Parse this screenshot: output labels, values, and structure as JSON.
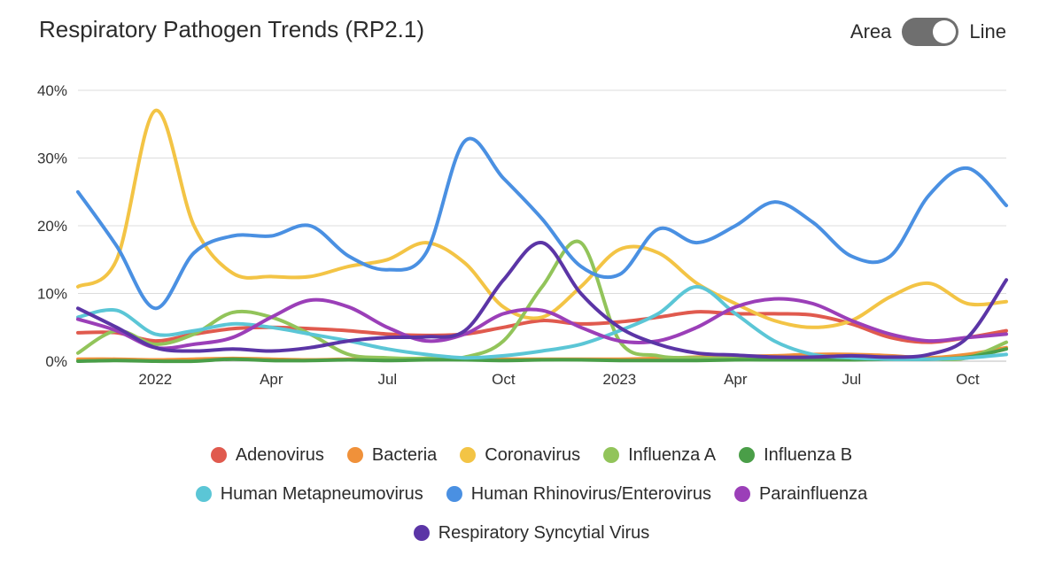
{
  "header": {
    "title": "Respiratory Pathogen Trends (RP2.1)",
    "toggle_left": "Area",
    "toggle_right": "Line"
  },
  "chart_data": {
    "type": "line",
    "title": "Respiratory Pathogen Trends (RP2.1)",
    "ylim": [
      0,
      40
    ],
    "yticks": [
      "0%",
      "10%",
      "20%",
      "30%",
      "40%"
    ],
    "x_tick_labels": [
      "2022",
      "Apr",
      "Jul",
      "Oct",
      "2023",
      "Apr",
      "Jul",
      "Oct"
    ],
    "x": [
      "2021-11",
      "2021-12",
      "2022-01",
      "2022-02",
      "2022-03",
      "2022-04",
      "2022-05",
      "2022-06",
      "2022-07",
      "2022-08",
      "2022-09",
      "2022-10",
      "2022-11",
      "2022-12",
      "2023-01",
      "2023-02",
      "2023-03",
      "2023-04",
      "2023-05",
      "2023-06",
      "2023-07",
      "2023-08",
      "2023-09",
      "2023-10",
      "2023-11"
    ],
    "series": [
      {
        "name": "Adenovirus",
        "color": "#e05a4e",
        "values": [
          4.2,
          4.2,
          3.0,
          4.0,
          4.8,
          5.0,
          4.8,
          4.5,
          4.0,
          3.8,
          4.0,
          5.0,
          6.0,
          5.5,
          5.8,
          6.5,
          7.3,
          7.0,
          7.0,
          6.8,
          5.5,
          3.5,
          2.8,
          3.5,
          4.5
        ]
      },
      {
        "name": "Bacteria",
        "color": "#f0913a",
        "values": [
          0.3,
          0.3,
          0.2,
          0.3,
          0.4,
          0.3,
          0.2,
          0.3,
          0.3,
          0.4,
          0.3,
          0.3,
          0.3,
          0.3,
          0.3,
          0.4,
          0.6,
          0.7,
          0.8,
          1.0,
          1.0,
          0.8,
          0.5,
          1.0,
          2.0
        ]
      },
      {
        "name": "Coronavirus",
        "color": "#f3c445",
        "values": [
          11.0,
          15.0,
          37.0,
          20.0,
          13.0,
          12.5,
          12.5,
          14.0,
          15.0,
          17.5,
          14.5,
          8.0,
          6.5,
          11.0,
          16.5,
          16.0,
          11.5,
          8.5,
          6.0,
          5.0,
          6.0,
          9.5,
          11.5,
          8.5,
          8.8
        ]
      },
      {
        "name": "Influenza A",
        "color": "#92c45a",
        "values": [
          1.2,
          4.5,
          2.5,
          4.0,
          7.2,
          6.5,
          4.0,
          1.0,
          0.5,
          0.4,
          0.6,
          3.0,
          11.0,
          17.5,
          3.0,
          0.8,
          0.5,
          0.4,
          0.3,
          0.3,
          0.4,
          0.3,
          0.3,
          0.5,
          2.8
        ]
      },
      {
        "name": "Influenza B",
        "color": "#4a9e48",
        "values": [
          0.0,
          0.1,
          0.0,
          0.0,
          0.3,
          0.1,
          0.1,
          0.2,
          0.1,
          0.2,
          0.2,
          0.1,
          0.2,
          0.2,
          0.1,
          0.1,
          0.1,
          0.2,
          0.2,
          0.2,
          0.2,
          0.3,
          0.3,
          0.6,
          1.8
        ]
      },
      {
        "name": "Human Metapneumovirus",
        "color": "#5bc6d6",
        "values": [
          6.5,
          7.5,
          4.0,
          4.5,
          5.5,
          5.0,
          4.0,
          3.0,
          1.8,
          1.0,
          0.5,
          0.8,
          1.5,
          2.5,
          4.5,
          7.0,
          11.0,
          7.0,
          3.0,
          1.0,
          0.5,
          0.3,
          0.3,
          0.5,
          1.0
        ]
      },
      {
        "name": "Human Rhinovirus/Enterovirus",
        "color": "#4a90e2",
        "values": [
          25.0,
          17.0,
          7.8,
          16.0,
          18.5,
          18.5,
          20.0,
          15.5,
          13.5,
          16.0,
          32.5,
          27.0,
          21.0,
          14.0,
          12.8,
          19.5,
          17.5,
          20.0,
          23.5,
          20.5,
          15.5,
          15.5,
          24.5,
          28.5,
          23.0
        ]
      },
      {
        "name": "Parainfluenza",
        "color": "#9b3fb8",
        "values": [
          6.2,
          4.5,
          2.0,
          2.5,
          3.5,
          6.5,
          9.0,
          8.0,
          5.0,
          3.0,
          4.0,
          7.0,
          7.5,
          5.0,
          3.0,
          3.0,
          5.0,
          8.0,
          9.2,
          8.5,
          6.0,
          4.0,
          3.0,
          3.5,
          4.0
        ]
      },
      {
        "name": "Respiratory Syncytial Virus",
        "color": "#5b35a6",
        "values": [
          7.8,
          5.0,
          2.0,
          1.5,
          1.8,
          1.5,
          2.0,
          3.0,
          3.5,
          3.6,
          4.5,
          12.0,
          17.5,
          10.0,
          5.0,
          2.5,
          1.2,
          0.9,
          0.6,
          0.6,
          0.8,
          0.6,
          1.0,
          3.5,
          12.0
        ]
      }
    ]
  },
  "legend_rows": [
    [
      0,
      1,
      2,
      3,
      4
    ],
    [
      5,
      6,
      7
    ],
    [
      8
    ]
  ]
}
